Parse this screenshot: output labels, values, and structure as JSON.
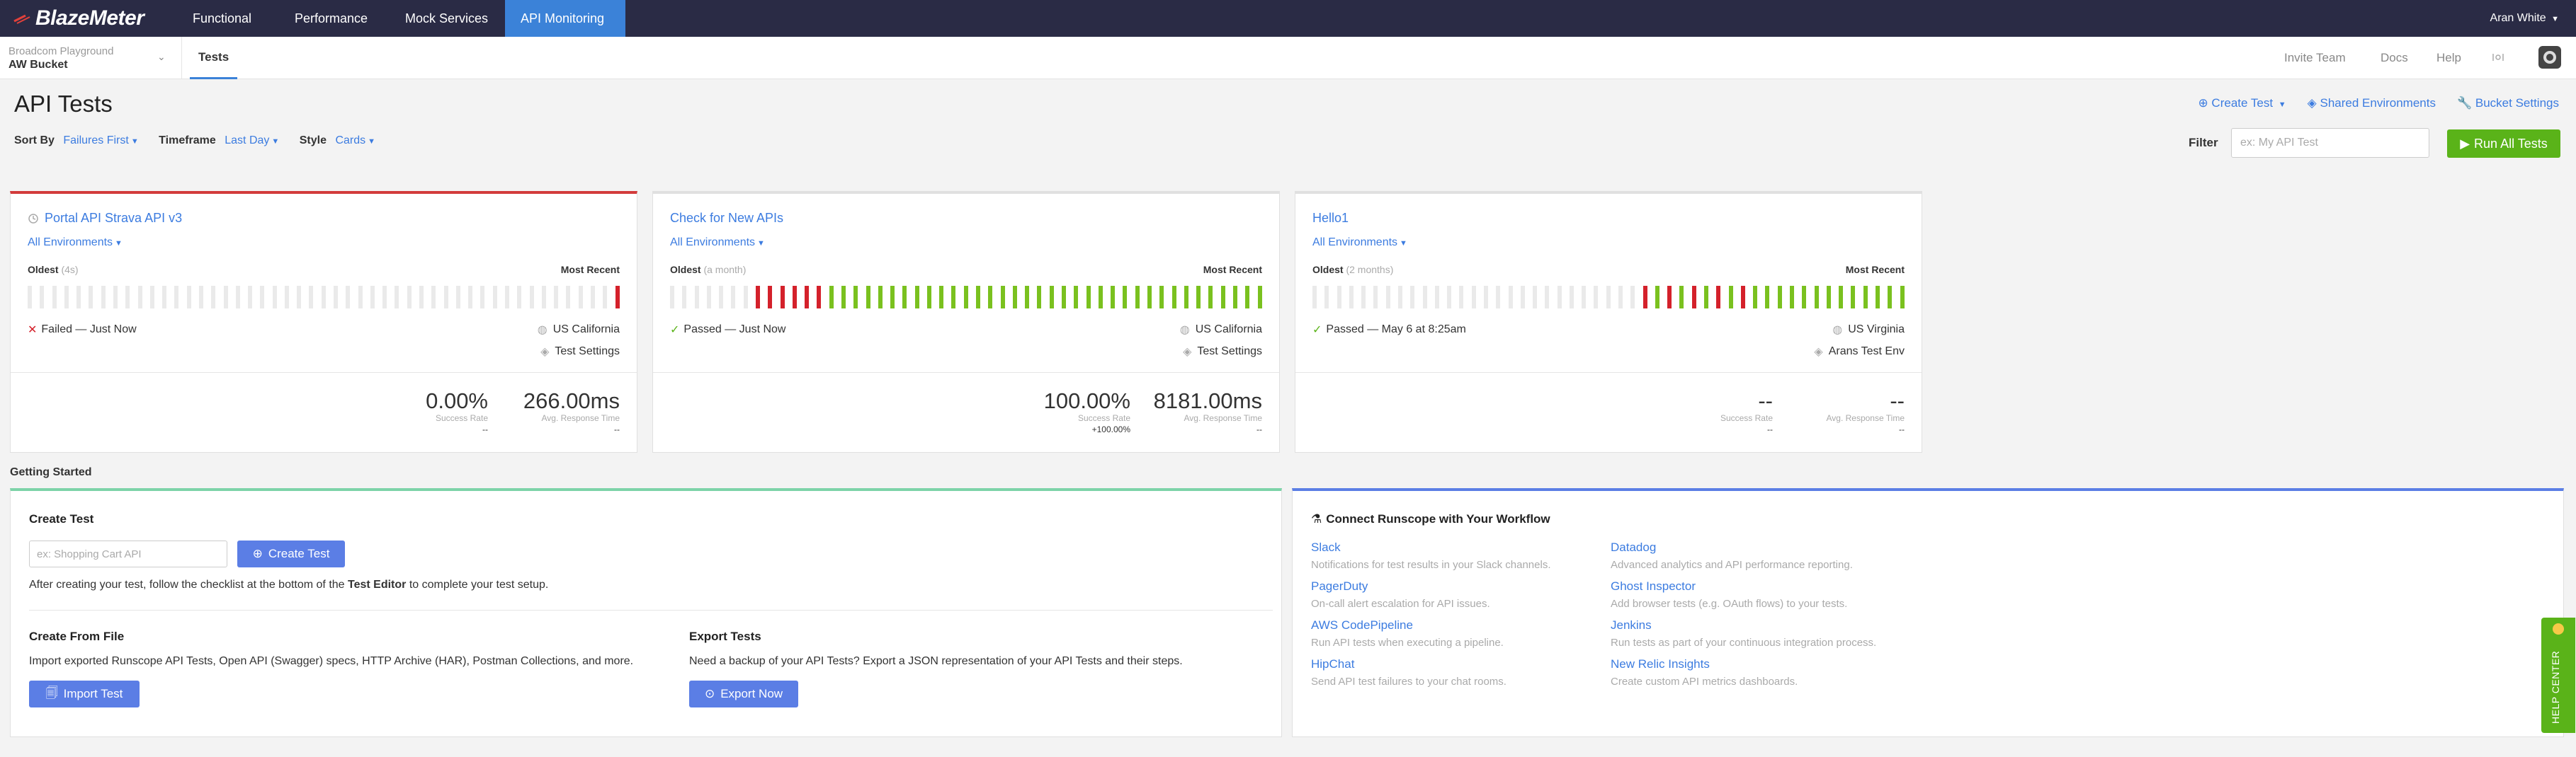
{
  "brand": {
    "name": "BlazeMeter"
  },
  "top_nav": {
    "items": [
      {
        "label": "Functional"
      },
      {
        "label": "Performance"
      },
      {
        "label": "Mock Services"
      },
      {
        "label": "API Monitoring",
        "active": true
      }
    ],
    "user": "Aran White"
  },
  "sub_nav": {
    "workspace_org": "Broadcom Playground",
    "workspace_bucket": "AW Bucket",
    "tab": "Tests",
    "links": [
      "Invite Team",
      "Docs",
      "Help"
    ]
  },
  "page": {
    "title": "API Tests",
    "sort_by_label": "Sort By",
    "sort_by_value": "Failures First",
    "timeframe_label": "Timeframe",
    "timeframe_value": "Last Day",
    "style_label": "Style",
    "style_value": "Cards",
    "create_test": "Create Test",
    "shared_envs": "Shared Environments",
    "bucket_settings": "Bucket Settings",
    "filter_label": "Filter",
    "filter_placeholder": "ex: My API Test",
    "run_all": "Run All Tests"
  },
  "cards": [
    {
      "title": "Portal API Strava API v3",
      "env": "All Environments",
      "oldest_label": "Oldest",
      "oldest_note": "(4s)",
      "recent_label": "Most Recent",
      "history": [
        "e",
        "e",
        "e",
        "e",
        "e",
        "e",
        "e",
        "e",
        "e",
        "e",
        "e",
        "e",
        "e",
        "e",
        "e",
        "e",
        "e",
        "e",
        "e",
        "e",
        "e",
        "e",
        "e",
        "e",
        "e",
        "e",
        "e",
        "e",
        "e",
        "e",
        "e",
        "e",
        "e",
        "e",
        "e",
        "e",
        "e",
        "e",
        "e",
        "e",
        "e",
        "e",
        "e",
        "e",
        "e",
        "e",
        "e",
        "e",
        "f"
      ],
      "status": "Failed — Just Now",
      "status_type": "fail",
      "location": "US California",
      "settings": "Test Settings",
      "success_rate": "0.00%",
      "success_label": "Success Rate",
      "success_change": "--",
      "avg_time": "266.00ms",
      "avg_label": "Avg. Response Time",
      "avg_change": "--"
    },
    {
      "title": "Check for New APIs",
      "env": "All Environments",
      "oldest_label": "Oldest",
      "oldest_note": "(a month)",
      "recent_label": "Most Recent",
      "history": [
        "e",
        "e",
        "e",
        "e",
        "e",
        "e",
        "e",
        "f",
        "f",
        "f",
        "f",
        "f",
        "f",
        "p",
        "p",
        "p",
        "p",
        "p",
        "p",
        "p",
        "p",
        "p",
        "p",
        "p",
        "p",
        "p",
        "p",
        "p",
        "p",
        "p",
        "p",
        "p",
        "p",
        "p",
        "p",
        "p",
        "p",
        "p",
        "p",
        "p",
        "p",
        "p",
        "p",
        "p",
        "p",
        "p",
        "p",
        "p",
        "p"
      ],
      "status": "Passed — Just Now",
      "status_type": "pass",
      "location": "US California",
      "settings": "Test Settings",
      "success_rate": "100.00%",
      "success_label": "Success Rate",
      "success_change": "+100.00%",
      "avg_time": "8181.00ms",
      "avg_label": "Avg. Response Time",
      "avg_change": "--"
    },
    {
      "title": "Hello1",
      "env": "All Environments",
      "oldest_label": "Oldest",
      "oldest_note": "(2 months)",
      "recent_label": "Most Recent",
      "history": [
        "e",
        "e",
        "e",
        "e",
        "e",
        "e",
        "e",
        "e",
        "e",
        "e",
        "e",
        "e",
        "e",
        "e",
        "e",
        "e",
        "e",
        "e",
        "e",
        "e",
        "e",
        "e",
        "e",
        "e",
        "e",
        "e",
        "e",
        "f",
        "p",
        "f",
        "p",
        "f",
        "p",
        "f",
        "p",
        "f",
        "p",
        "p",
        "p",
        "p",
        "p",
        "p",
        "p",
        "p",
        "p",
        "p",
        "p",
        "p",
        "p"
      ],
      "status": "Passed — May 6 at 8:25am",
      "status_type": "pass",
      "location": "US Virginia",
      "settings": "Arans Test Env",
      "success_rate": "--",
      "success_label": "Success Rate",
      "success_change": "--",
      "avg_time": "--",
      "avg_label": "Avg. Response Time",
      "avg_change": "--"
    }
  ],
  "getting_started": {
    "heading": "Getting Started",
    "create_test_title": "Create Test",
    "create_test_placeholder": "ex: Shopping Cart API",
    "create_test_button": "Create Test",
    "create_help_before": "After creating your test, follow the checklist at the bottom of the ",
    "create_help_bold": "Test Editor",
    "create_help_after": " to complete your test setup.",
    "from_file_title": "Create From File",
    "from_file_desc": "Import exported Runscope API Tests, Open API (Swagger) specs, HTTP Archive (HAR), Postman Collections, and more.",
    "import_button": "Import Test",
    "export_title": "Export Tests",
    "export_desc": "Need a backup of your API Tests? Export a JSON representation of your API Tests and their steps.",
    "export_button": "Export Now"
  },
  "connect": {
    "title": "Connect Runscope with Your Workflow",
    "integrations": [
      {
        "name": "Slack",
        "desc": "Notifications for test results in your Slack channels."
      },
      {
        "name": "Datadog",
        "desc": "Advanced analytics and API performance reporting."
      },
      {
        "name": "PagerDuty",
        "desc": "On-call alert escalation for API issues."
      },
      {
        "name": "Ghost Inspector",
        "desc": "Add browser tests (e.g. OAuth flows) to your tests."
      },
      {
        "name": "AWS CodePipeline",
        "desc": "Run API tests when executing a pipeline."
      },
      {
        "name": "Jenkins",
        "desc": "Run tests as part of your continuous integration process."
      },
      {
        "name": "HipChat",
        "desc": "Send API test failures to your chat rooms."
      },
      {
        "name": "New Relic Insights",
        "desc": "Create custom API metrics dashboards."
      }
    ]
  },
  "help_center": "HELP CENTER",
  "colors": {
    "nav_bg": "#2a2b45",
    "accent": "#3b82d8",
    "pass": "#7ac11f",
    "fail": "#d4212b",
    "run_btn": "#5ab319"
  }
}
